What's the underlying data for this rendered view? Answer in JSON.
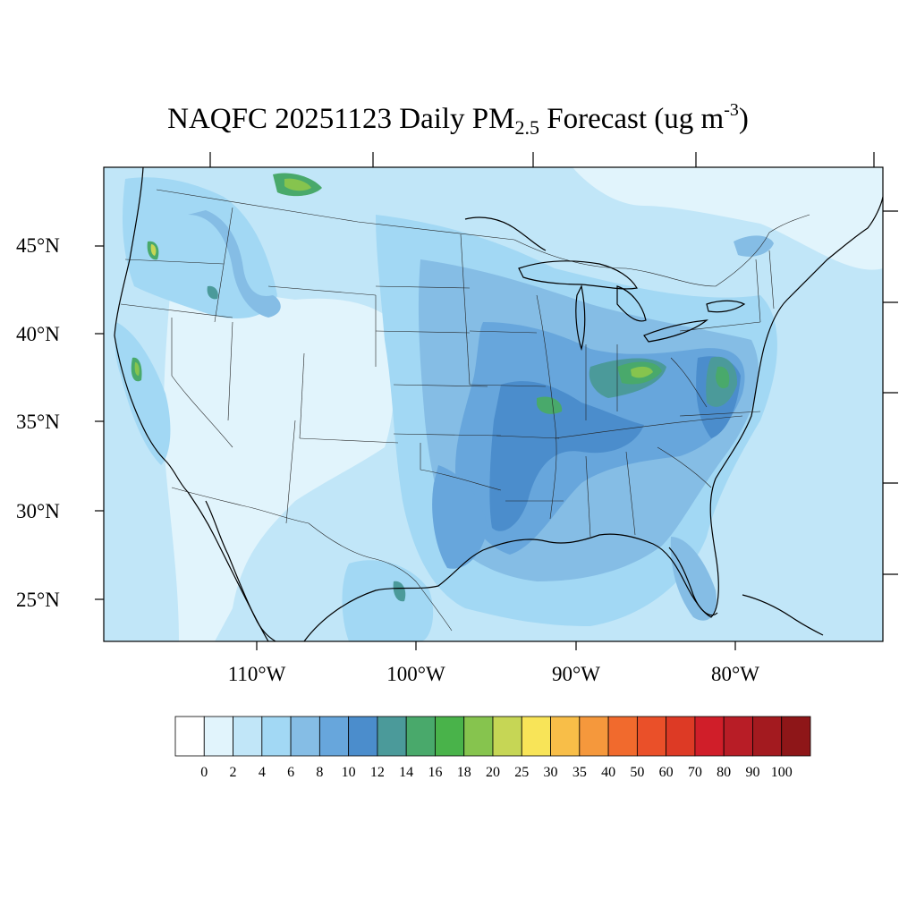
{
  "title": {
    "prefix": "NAQFC 20251123 Daily PM",
    "pm_subscript": "2.5",
    "middle": " Forecast (ug m",
    "unit_superscript": "-3",
    "suffix": ")"
  },
  "map": {
    "projection": "lambert-conformal",
    "lat_labels": [
      "45°N",
      "40°N",
      "35°N",
      "30°N",
      "25°N"
    ],
    "lon_labels": [
      "110°W",
      "100°W",
      "90°W",
      "80°W"
    ],
    "background_level_color": "#c1e6f8"
  },
  "colorbar": {
    "labels": [
      "0",
      "2",
      "4",
      "6",
      "8",
      "10",
      "12",
      "14",
      "16",
      "18",
      "20",
      "25",
      "30",
      "35",
      "40",
      "50",
      "60",
      "70",
      "80",
      "90",
      "100"
    ],
    "colors": [
      "#ffffff",
      "#e1f4fc",
      "#c1e6f8",
      "#a2d8f4",
      "#85bde5",
      "#67a6dc",
      "#4b8dcc",
      "#4b9a9a",
      "#49a96b",
      "#49b34a",
      "#86c44e",
      "#c6d655",
      "#f8e458",
      "#f8be48",
      "#f5983c",
      "#f16a2d",
      "#ea5029",
      "#dd3a25",
      "#d01e29",
      "#b81d26",
      "#a31a1f",
      "#8e1618"
    ]
  }
}
